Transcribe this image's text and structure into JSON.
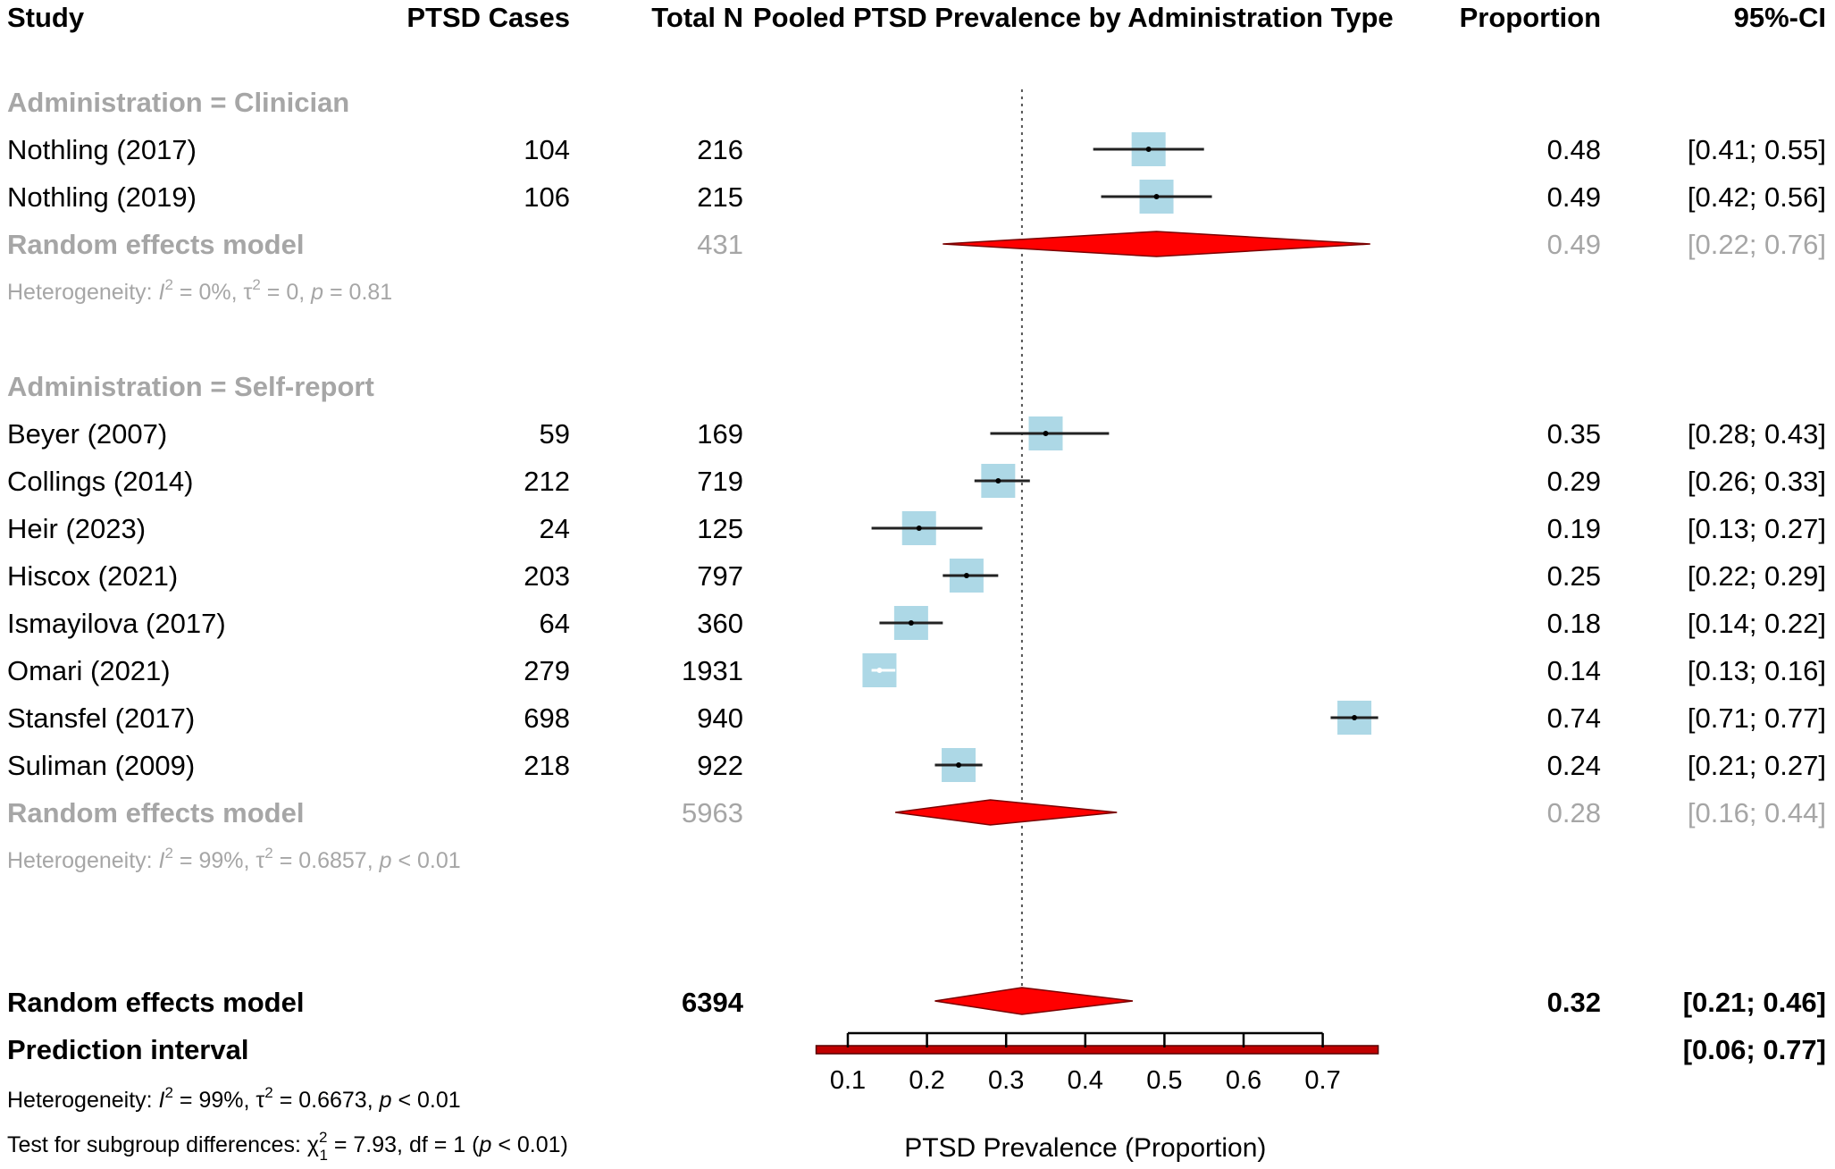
{
  "chart_data": {
    "type": "forest",
    "title": "Pooled PTSD Prevalence by Administration Type",
    "headers": {
      "study": "Study",
      "cases": "PTSD Cases",
      "total": "Total N",
      "plot": "Pooled PTSD Prevalence by Administration Type",
      "proportion": "Proportion",
      "ci": "95%-CI"
    },
    "xlabel": "PTSD Prevalence (Proportion)",
    "xlim": [
      0.1,
      0.7
    ],
    "xticks": [
      0.1,
      0.2,
      0.3,
      0.4,
      0.5,
      0.6,
      0.7
    ],
    "xtick_labels": [
      "0.1",
      "0.2",
      "0.3",
      "0.4",
      "0.5",
      "0.6",
      "0.7"
    ],
    "reference_line": 0.32,
    "colors": {
      "square": "#add8e6",
      "diamond": "#ff0000",
      "prediction": "#c00000",
      "grey_text": "#a6a6a6"
    },
    "subgroups": [
      {
        "label": "Administration = Clinician",
        "studies": [
          {
            "study": "Nothling (2017)",
            "cases": "104",
            "total": "216",
            "prop": 0.48,
            "lo": 0.41,
            "hi": 0.55,
            "prop_text": "0.48",
            "ci_text": "[0.41; 0.55]"
          },
          {
            "study": "Nothling (2019)",
            "cases": "106",
            "total": "215",
            "prop": 0.49,
            "lo": 0.42,
            "hi": 0.56,
            "prop_text": "0.49",
            "ci_text": "[0.42; 0.56]"
          }
        ],
        "model": {
          "label": "Random effects model",
          "total": "431",
          "prop": 0.49,
          "lo": 0.22,
          "hi": 0.76,
          "prop_text": "0.49",
          "ci_text": "[0.22; 0.76]"
        },
        "heterogeneity": {
          "prefix": "Heterogeneity: ",
          "i2": " = 0%, ",
          "tau2": " = 0, ",
          "p": " = 0.81"
        }
      },
      {
        "label": "Administration = Self-report",
        "studies": [
          {
            "study": "Beyer (2007)",
            "cases": "59",
            "total": "169",
            "prop": 0.35,
            "lo": 0.28,
            "hi": 0.43,
            "prop_text": "0.35",
            "ci_text": "[0.28; 0.43]"
          },
          {
            "study": "Collings (2014)",
            "cases": "212",
            "total": "719",
            "prop": 0.29,
            "lo": 0.26,
            "hi": 0.33,
            "prop_text": "0.29",
            "ci_text": "[0.26; 0.33]"
          },
          {
            "study": "Heir (2023)",
            "cases": "24",
            "total": "125",
            "prop": 0.19,
            "lo": 0.13,
            "hi": 0.27,
            "prop_text": "0.19",
            "ci_text": "[0.13; 0.27]"
          },
          {
            "study": "Hiscox (2021)",
            "cases": "203",
            "total": "797",
            "prop": 0.25,
            "lo": 0.22,
            "hi": 0.29,
            "prop_text": "0.25",
            "ci_text": "[0.22; 0.29]"
          },
          {
            "study": "Ismayilova (2017)",
            "cases": "64",
            "total": "360",
            "prop": 0.18,
            "lo": 0.14,
            "hi": 0.22,
            "prop_text": "0.18",
            "ci_text": "[0.14; 0.22]"
          },
          {
            "study": "Omari (2021)",
            "cases": "279",
            "total": "1931",
            "prop": 0.14,
            "lo": 0.13,
            "hi": 0.16,
            "prop_text": "0.14",
            "ci_text": "[0.13; 0.16]"
          },
          {
            "study": "Stansfel (2017)",
            "cases": "698",
            "total": "940",
            "prop": 0.74,
            "lo": 0.71,
            "hi": 0.77,
            "prop_text": "0.74",
            "ci_text": "[0.71; 0.77]"
          },
          {
            "study": "Suliman (2009)",
            "cases": "218",
            "total": "922",
            "prop": 0.24,
            "lo": 0.21,
            "hi": 0.27,
            "prop_text": "0.24",
            "ci_text": "[0.21; 0.27]"
          }
        ],
        "model": {
          "label": "Random effects model",
          "total": "5963",
          "prop": 0.28,
          "lo": 0.16,
          "hi": 0.44,
          "prop_text": "0.28",
          "ci_text": "[0.16; 0.44]"
        },
        "heterogeneity": {
          "prefix": "Heterogeneity: ",
          "i2": " = 99%, ",
          "tau2": " = 0.6857, ",
          "p": " < 0.01"
        }
      }
    ],
    "overall": {
      "label": "Random effects model",
      "total": "6394",
      "prop": 0.32,
      "lo": 0.21,
      "hi": 0.46,
      "prop_text": "0.32",
      "ci_text": "[0.21; 0.46]"
    },
    "prediction": {
      "label": "Prediction interval",
      "lo": 0.06,
      "hi": 0.77,
      "ci_text": "[0.06; 0.77]"
    },
    "overall_heterogeneity": {
      "prefix": "Heterogeneity: ",
      "i2": " = 99%, ",
      "tau2": " = 0.6673, ",
      "p": " < 0.01"
    },
    "subgroup_test": {
      "prefix": "Test for subgroup differences: ",
      "chi": " = 7.93, df = 1 (",
      "p": " < 0.01)"
    }
  }
}
